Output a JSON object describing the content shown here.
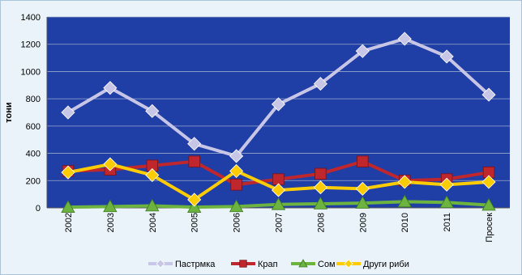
{
  "chart_data": {
    "type": "line",
    "title": "",
    "ylabel": "тони",
    "xlabel": "",
    "ylim": [
      0,
      1400
    ],
    "yticks": [
      0,
      200,
      400,
      600,
      800,
      1000,
      1200,
      1400
    ],
    "categories": [
      "2002",
      "2003",
      "2004",
      "2005",
      "2006",
      "2007",
      "2008",
      "2009",
      "2010",
      "2011",
      "Просек"
    ],
    "grid": true,
    "legend_position": "bottom",
    "plot_background": "#1f3ea6",
    "series": [
      {
        "name": "Пастрмка",
        "color": "#c8c6e6",
        "marker": "diamond",
        "values": [
          700,
          880,
          710,
          470,
          380,
          760,
          910,
          1150,
          1240,
          1110,
          830
        ]
      },
      {
        "name": "Крап",
        "color": "#c0272d",
        "marker": "square",
        "values": [
          270,
          280,
          310,
          340,
          170,
          210,
          250,
          340,
          200,
          210,
          260
        ]
      },
      {
        "name": "Сом",
        "color": "#6cb33f",
        "marker": "triangle",
        "values": [
          5,
          10,
          15,
          5,
          10,
          25,
          30,
          35,
          45,
          40,
          20
        ]
      },
      {
        "name": "Други риби",
        "color": "#ffcc00",
        "marker": "diamond",
        "values": [
          260,
          320,
          240,
          60,
          270,
          130,
          150,
          140,
          190,
          170,
          190
        ]
      }
    ]
  }
}
